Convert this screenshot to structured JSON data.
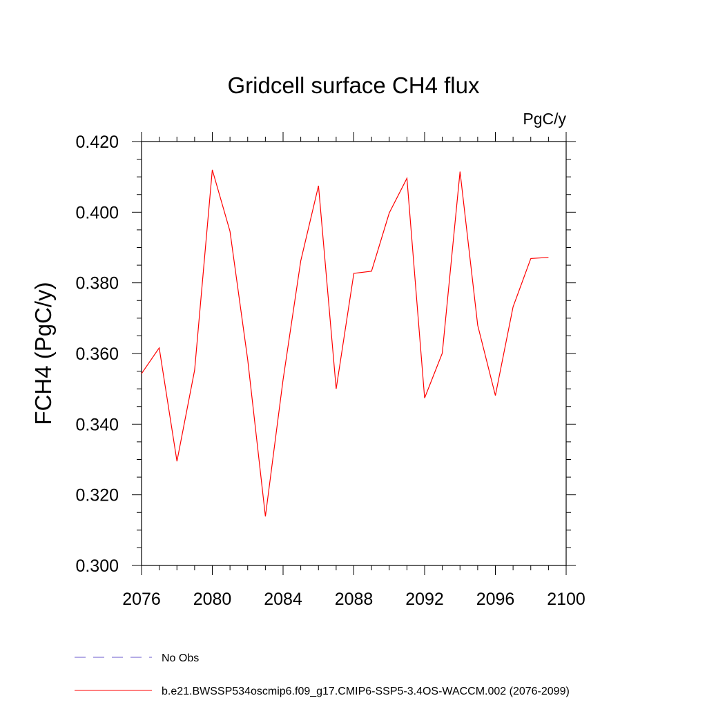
{
  "chart_data": {
    "type": "line",
    "title": "Gridcell surface CH4 flux",
    "units_label": "PgC/y",
    "ylabel": "FCH4  (PgC/y)",
    "xlabel": "",
    "xlim": [
      2076,
      2100
    ],
    "ylim": [
      0.3,
      0.42
    ],
    "x_ticks": [
      "2076",
      "2080",
      "2084",
      "2088",
      "2092",
      "2096",
      "2100"
    ],
    "y_ticks": [
      "0.300",
      "0.320",
      "0.340",
      "0.360",
      "0.380",
      "0.400",
      "0.420"
    ],
    "series": [
      {
        "name": "b.e21.BWSSP534oscmip6.f09_g17.CMIP6-SSP5-3.4OS-WACCM.002 (2076-2099)",
        "color": "#ff0000",
        "style": "solid",
        "x": [
          2076,
          2077,
          2078,
          2079,
          2080,
          2081,
          2082,
          2083,
          2084,
          2085,
          2086,
          2087,
          2088,
          2089,
          2090,
          2091,
          2092,
          2093,
          2094,
          2095,
          2096,
          2097,
          2098,
          2099
        ],
        "values": [
          0.3543,
          0.3616,
          0.3295,
          0.3553,
          0.412,
          0.3946,
          0.3582,
          0.3139,
          0.3526,
          0.3862,
          0.4075,
          0.35,
          0.3827,
          0.3833,
          0.3998,
          0.4096,
          0.3474,
          0.3601,
          0.4115,
          0.368,
          0.3481,
          0.3732,
          0.3869,
          0.3872
        ]
      }
    ],
    "legend": [
      {
        "label": "No Obs",
        "color": "#6a5acd",
        "style": "dashed"
      },
      {
        "label": "b.e21.BWSSP534oscmip6.f09_g17.CMIP6-SSP5-3.4OS-WACCM.002 (2076-2099)",
        "color": "#ff0000",
        "style": "solid"
      }
    ],
    "legend_position": "bottom-left"
  }
}
